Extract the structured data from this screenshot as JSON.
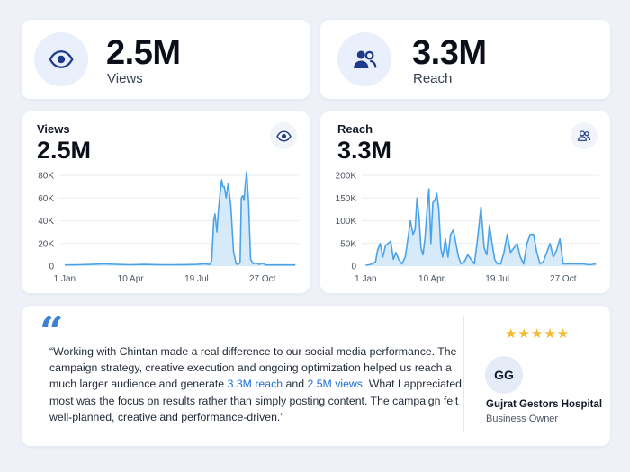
{
  "colors": {
    "accent": "#1d6fd6",
    "line": "#4aa3e8",
    "fill": "#cfe6f8",
    "icon": "#1e3a8a",
    "star": "#f5b82e"
  },
  "stats": [
    {
      "value": "2.5M",
      "label": "Views",
      "icon": "eye-icon"
    },
    {
      "value": "3.3M",
      "label": "Reach",
      "icon": "users-icon"
    }
  ],
  "charts": {
    "views": {
      "title": "Views",
      "total": "2.5M",
      "icon": "eye-icon"
    },
    "reach": {
      "title": "Reach",
      "total": "3.3M",
      "icon": "users-icon"
    }
  },
  "chart_data": [
    {
      "type": "area",
      "title": "Views",
      "y_ticks": [
        0,
        20000,
        40000,
        60000,
        80000
      ],
      "y_tick_labels": [
        "0",
        "20K",
        "40K",
        "60K",
        "80K"
      ],
      "ylim": [
        0,
        80000
      ],
      "x_ticks": [
        "1 Jan",
        "10 Apr",
        "19 Jul",
        "27 Oct"
      ],
      "x_tick_days": [
        0,
        100,
        200,
        300
      ],
      "xlim": [
        -8,
        355
      ],
      "grid": true,
      "x": [
        0,
        20,
        40,
        60,
        80,
        100,
        120,
        140,
        160,
        180,
        200,
        212,
        220,
        223,
        226,
        228,
        231,
        233,
        235,
        238,
        240,
        242,
        245,
        248,
        252,
        256,
        260,
        263,
        266,
        268,
        270,
        272,
        274,
        276,
        279,
        282,
        286,
        290,
        295,
        300,
        305,
        310,
        330,
        350
      ],
      "y": [
        1000,
        1200,
        1500,
        2000,
        1500,
        1200,
        1500,
        1300,
        1200,
        1300,
        1500,
        2000,
        1500,
        5000,
        40000,
        46000,
        30000,
        48000,
        60000,
        76000,
        70000,
        70000,
        60000,
        73000,
        53000,
        13000,
        2000,
        1500,
        3000,
        60000,
        62000,
        58000,
        72000,
        83000,
        55000,
        6000,
        2000,
        3000,
        1500,
        2500,
        1000,
        1000,
        1000,
        1000
      ]
    },
    {
      "type": "area",
      "title": "Reach",
      "y_ticks": [
        0,
        50000,
        100000,
        150000,
        200000
      ],
      "y_tick_labels": [
        "0",
        "50K",
        "100K",
        "150K",
        "200K"
      ],
      "ylim": [
        0,
        200000
      ],
      "x_ticks": [
        "1 Jan",
        "10 Apr",
        "19 Jul",
        "27 Oct"
      ],
      "x_tick_days": [
        0,
        100,
        200,
        300
      ],
      "xlim": [
        -6,
        355
      ],
      "grid": true,
      "x": [
        0,
        5,
        10,
        15,
        18,
        22,
        26,
        30,
        34,
        38,
        42,
        46,
        50,
        55,
        60,
        64,
        68,
        72,
        75,
        78,
        81,
        84,
        87,
        90,
        93,
        96,
        99,
        102,
        105,
        108,
        111,
        114,
        117,
        121,
        125,
        129,
        133,
        137,
        141,
        145,
        150,
        155,
        160,
        165,
        170,
        175,
        180,
        184,
        188,
        192,
        196,
        200,
        205,
        210,
        215,
        220,
        225,
        230,
        235,
        240,
        245,
        250,
        255,
        260,
        265,
        270,
        275,
        280,
        285,
        290,
        295,
        300,
        310,
        320,
        330,
        340,
        350
      ],
      "y": [
        2000,
        3000,
        5000,
        10000,
        35000,
        50000,
        20000,
        45000,
        50000,
        55000,
        15000,
        30000,
        15000,
        5000,
        20000,
        60000,
        100000,
        70000,
        80000,
        150000,
        110000,
        40000,
        25000,
        60000,
        120000,
        170000,
        50000,
        140000,
        145000,
        160000,
        125000,
        40000,
        20000,
        60000,
        20000,
        70000,
        80000,
        50000,
        20000,
        5000,
        10000,
        25000,
        15000,
        5000,
        60000,
        130000,
        40000,
        25000,
        90000,
        50000,
        15000,
        5000,
        5000,
        30000,
        70000,
        30000,
        40000,
        50000,
        20000,
        5000,
        50000,
        70000,
        70000,
        30000,
        5000,
        10000,
        30000,
        50000,
        20000,
        35000,
        60000,
        5000,
        5000,
        5000,
        5000,
        3000,
        5000
      ]
    }
  ],
  "testimonial": {
    "quote_mark": "“",
    "text_1": "“Working with Chintan made a real difference to our social media performance. The campaign strategy, creative execution and ongoing optimization helped us reach a much larger audience and generate ",
    "highlight_1": "3.3M reach",
    "text_2": " and ",
    "highlight_2": "2.5M views",
    "text_3": ". What I appreciated most was the focus on results rather than simply posting content. The campaign felt well-planned, creative and performance-driven.”",
    "rating": 5,
    "stars": "★★★★★",
    "initials": "GG",
    "author": "Gujrat Gestors Hospital",
    "role": "Business Owner"
  }
}
